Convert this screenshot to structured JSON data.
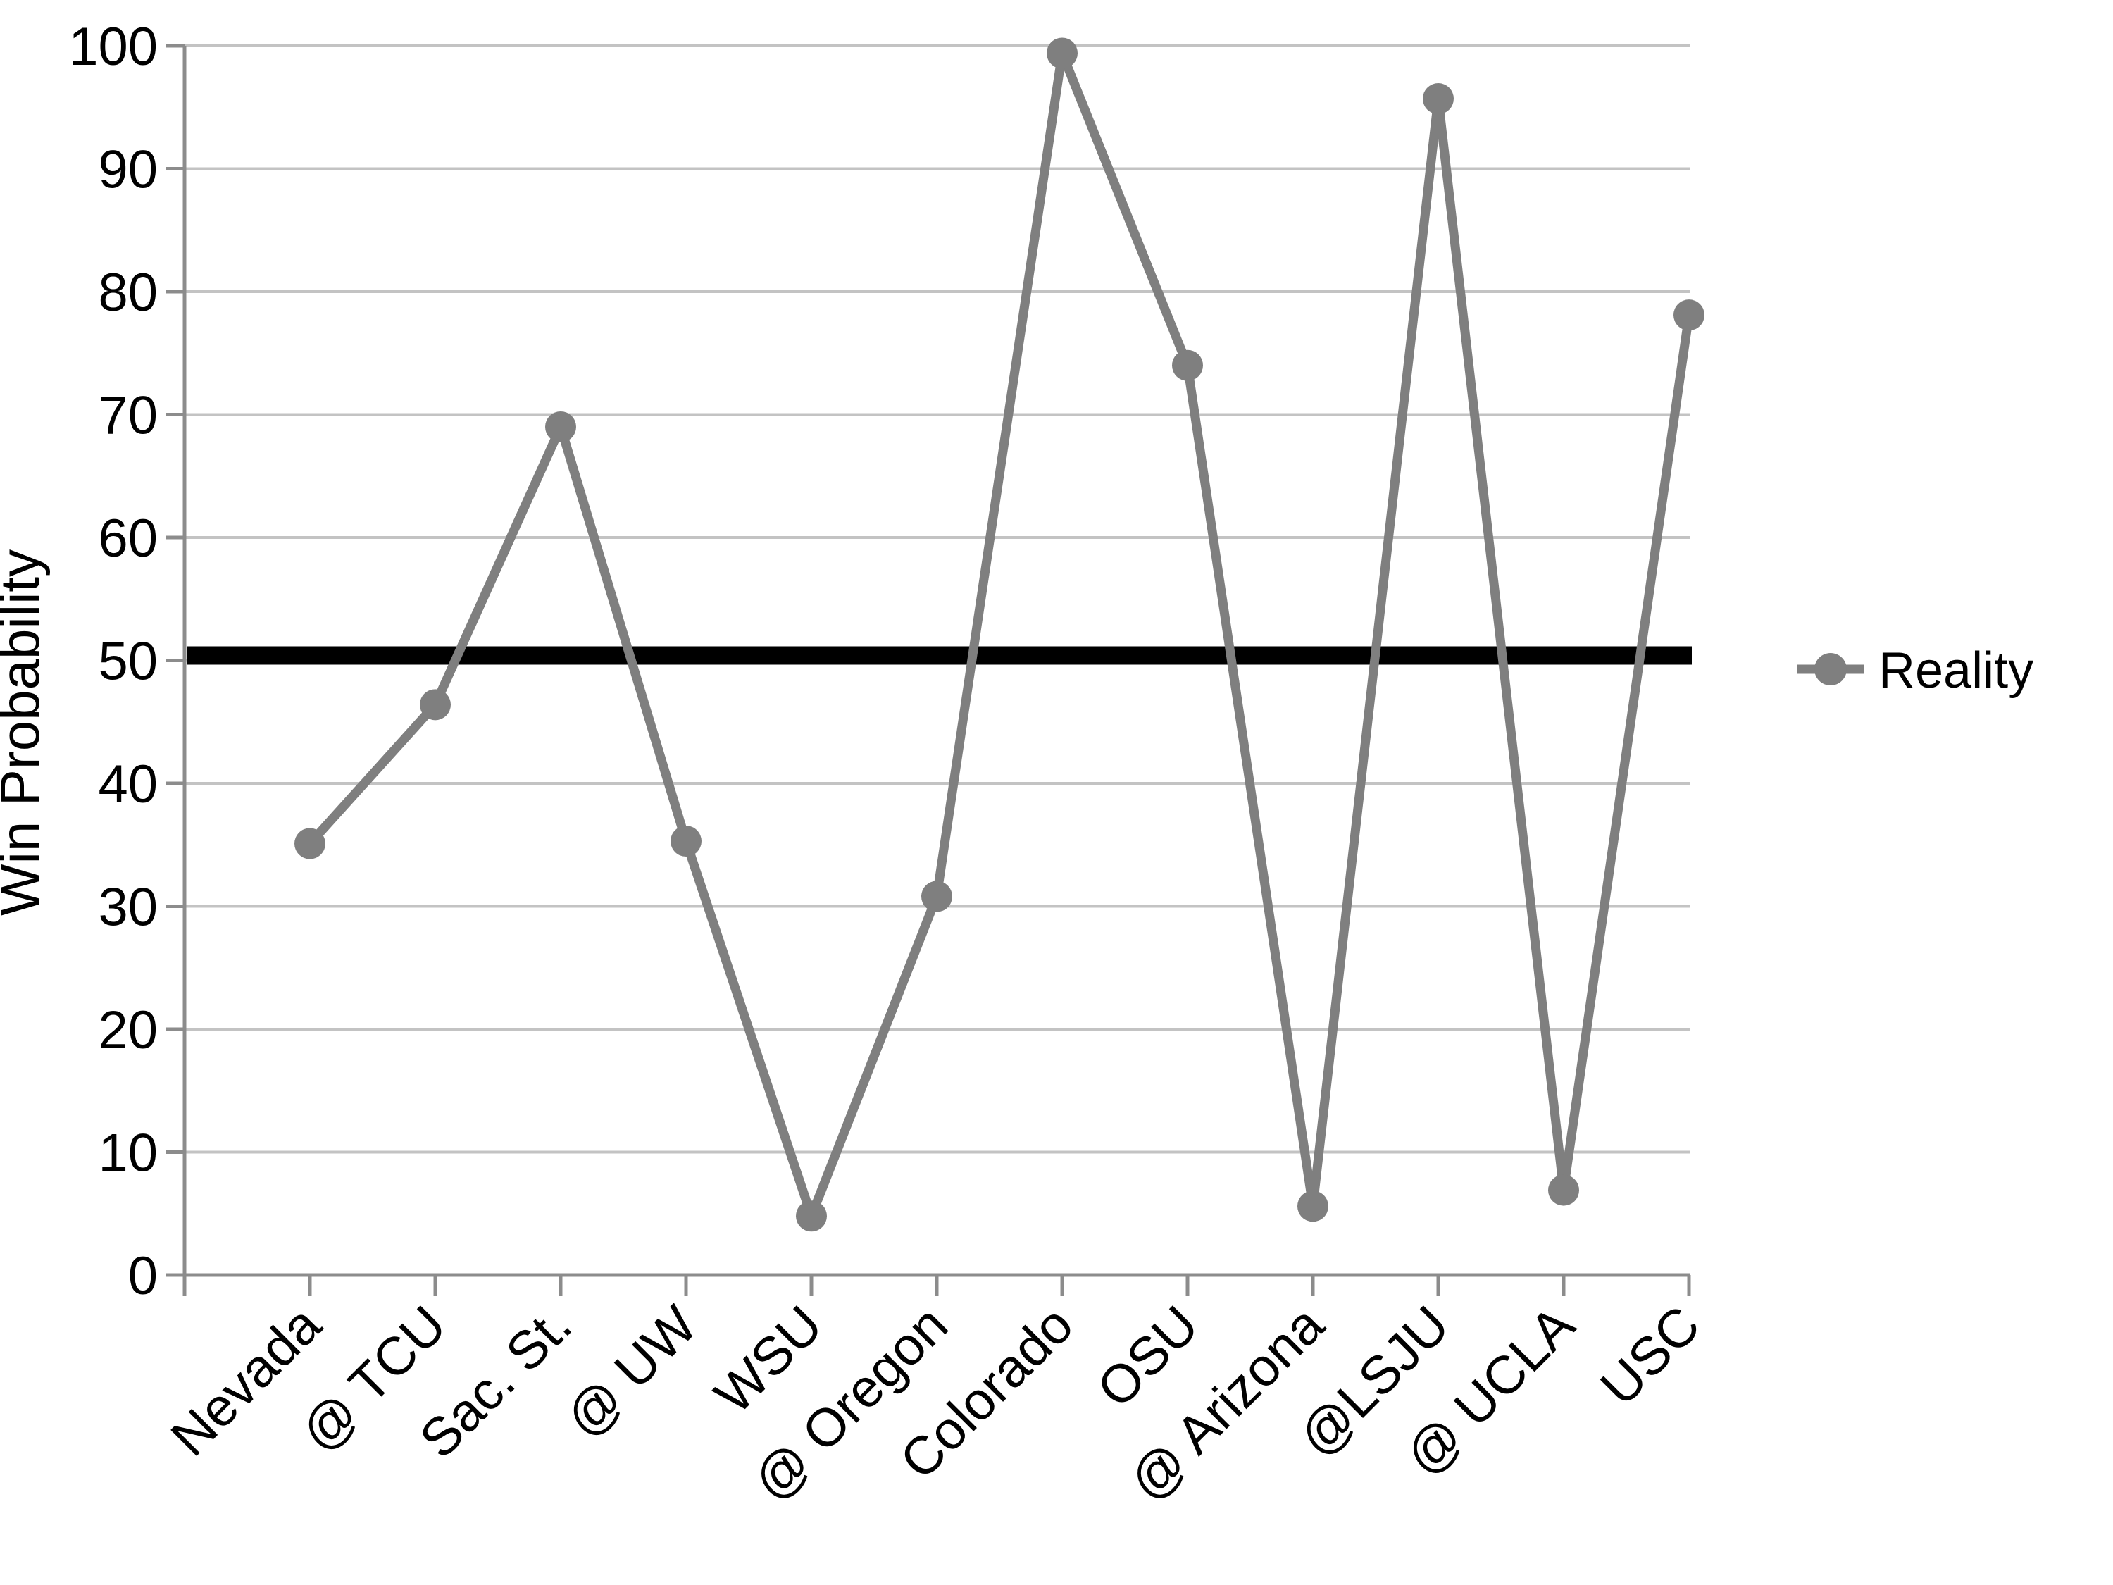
{
  "chart_data": {
    "type": "line",
    "title": "",
    "xlabel": "",
    "ylabel": "Win Probability",
    "categories": [
      "Nevada",
      "@ TCU",
      "Sac. St.",
      "@ UW",
      "WSU",
      "@ Oregon",
      "Colorado",
      "OSU",
      "@ Arizona",
      "@LSJU",
      "@ UCLA",
      "USC"
    ],
    "series": [
      {
        "name": "Reality",
        "color": "#7f7f7f",
        "marker": "circle",
        "values": [
          35.1,
          46.4,
          69.0,
          35.3,
          4.8,
          30.8,
          99.4,
          74.0,
          5.6,
          95.7,
          6.9,
          78.1
        ]
      }
    ],
    "reference_line": {
      "value": 50.4,
      "color": "#000000"
    },
    "ylim": [
      0,
      100
    ],
    "yticks": [
      0,
      10,
      20,
      30,
      40,
      50,
      60,
      70,
      80,
      90,
      100
    ],
    "grid": "horizontal",
    "legend_position": "right-middle",
    "x_label_rotation_deg": -45
  },
  "colors": {
    "background": "#ffffff",
    "series_gray": "#7f7f7f",
    "gridline": "#c3c3c3",
    "axis": "#8c8c8c",
    "reference": "#000000",
    "text": "#000000"
  }
}
